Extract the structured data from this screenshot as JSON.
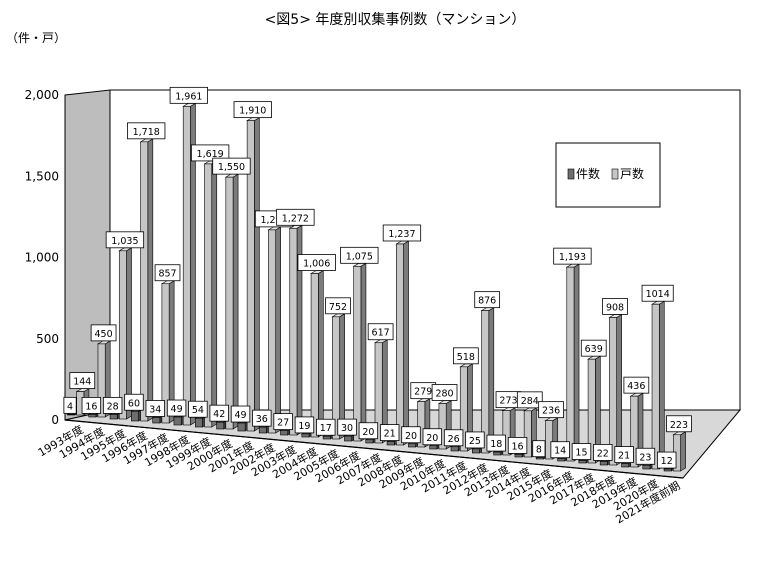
{
  "chart_data": {
    "type": "bar",
    "title": "<図5> 年度別収集事例数（マンション）",
    "unit_label": "（件・戸）",
    "ylim": [
      0,
      2000
    ],
    "yticks": [
      "0",
      "500",
      "1,000",
      "1,500",
      "2,000"
    ],
    "ytick_values": [
      0,
      500,
      1000,
      1500,
      2000
    ],
    "legend_position": "top-right",
    "categories": [
      "1993年度",
      "1994年度",
      "1995年度",
      "1996年度",
      "1997年度",
      "1998年度",
      "1999年度",
      "2000年度",
      "2001年度",
      "2002年度",
      "2003年度",
      "2004年度",
      "2005年度",
      "2006年度",
      "2007年度",
      "2008年度",
      "2009年度",
      "2010年度",
      "2011年度",
      "2012年度",
      "2013年度",
      "2014年度",
      "2015年度",
      "2016年度",
      "2017年度",
      "2018年度",
      "2019年度",
      "2020年度",
      "2021年度前期"
    ],
    "series": [
      {
        "name": "件数",
        "color": "#6e6e6e",
        "values": [
          4,
          16,
          28,
          60,
          34,
          49,
          54,
          42,
          49,
          36,
          27,
          19,
          17,
          30,
          20,
          21,
          20,
          20,
          26,
          25,
          18,
          16,
          8,
          14,
          15,
          22,
          21,
          23,
          12
        ],
        "labels": [
          "4",
          "16",
          "28",
          "60",
          "34",
          "49",
          "54",
          "42",
          "49",
          "36",
          "27",
          "19",
          "17",
          "30",
          "20",
          "21",
          "20",
          "20",
          "26",
          "25",
          "18",
          "16",
          "8",
          "14",
          "15",
          "22",
          "21",
          "23",
          "12"
        ]
      },
      {
        "name": "戸数",
        "color": "#c6c6c6",
        "values": [
          144,
          450,
          1035,
          1718,
          857,
          1961,
          1619,
          1550,
          1910,
          1250,
          1272,
          1006,
          752,
          1075,
          617,
          1237,
          279,
          280,
          518,
          876,
          273,
          284,
          236,
          1193,
          639,
          908,
          436,
          1014,
          223
        ],
        "labels": [
          "144",
          "450",
          "1,035",
          "1,718",
          "857",
          "1,961",
          "1,619",
          "1,550",
          "1,910",
          "1,250",
          "1,272",
          "1,006",
          "752",
          "1,075",
          "617",
          "1,237",
          "279",
          "280",
          "518",
          "876",
          "273",
          "284",
          "236",
          "1,193",
          "639",
          "908",
          "436",
          "1014",
          "223"
        ]
      }
    ]
  }
}
